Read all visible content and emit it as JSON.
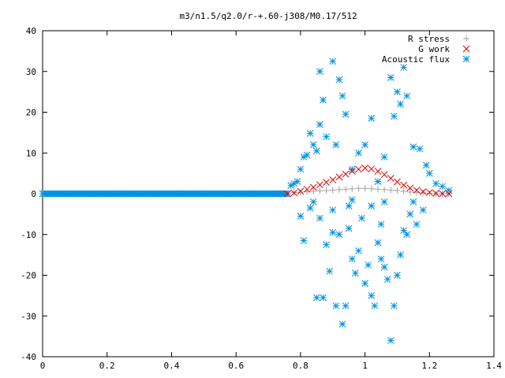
{
  "chart_data": {
    "type": "scatter",
    "title": "m3/n1.5/q2.0/r-+.60-j308/M0.17/512",
    "xlabel": "",
    "ylabel": "",
    "xlim": [
      0,
      1.4
    ],
    "ylim": [
      -40,
      40
    ],
    "x_ticks": [
      "0",
      "0.2",
      "0.4",
      "0.6",
      "0.8",
      "1",
      "1.2",
      "1.4"
    ],
    "y_ticks": [
      "40",
      "30",
      "20",
      "10",
      "0",
      "-10",
      "-20",
      "-30",
      "-40"
    ],
    "grid": false,
    "legend_position": "top-right",
    "series": [
      {
        "name": "R stress",
        "color": "#a0a0a0",
        "marker": "plus",
        "points": [
          [
            0.78,
            0.3
          ],
          [
            0.8,
            0.4
          ],
          [
            0.82,
            0.5
          ],
          [
            0.84,
            0.6
          ],
          [
            0.86,
            0.7
          ],
          [
            0.88,
            0.8
          ],
          [
            0.9,
            0.9
          ],
          [
            0.92,
            1.0
          ],
          [
            0.94,
            1.1
          ],
          [
            0.96,
            1.2
          ],
          [
            0.98,
            1.3
          ],
          [
            1.0,
            1.3
          ],
          [
            1.02,
            1.2
          ],
          [
            1.04,
            1.1
          ],
          [
            1.06,
            1.0
          ],
          [
            1.08,
            0.9
          ],
          [
            1.1,
            0.8
          ],
          [
            1.12,
            0.6
          ],
          [
            1.14,
            0.4
          ],
          [
            1.16,
            0.3
          ],
          [
            1.18,
            0.2
          ],
          [
            1.2,
            0.1
          ],
          [
            1.22,
            0.0
          ],
          [
            1.24,
            0.0
          ],
          [
            1.26,
            0.0
          ]
        ]
      },
      {
        "name": "G work",
        "color": "#e00000",
        "marker": "cross",
        "points": [
          [
            0.76,
            0.0
          ],
          [
            0.78,
            0.2
          ],
          [
            0.8,
            0.6
          ],
          [
            0.82,
            1.1
          ],
          [
            0.84,
            1.6
          ],
          [
            0.86,
            2.2
          ],
          [
            0.88,
            2.8
          ],
          [
            0.9,
            3.4
          ],
          [
            0.92,
            4.1
          ],
          [
            0.94,
            4.8
          ],
          [
            0.96,
            5.5
          ],
          [
            0.98,
            6.0
          ],
          [
            1.0,
            6.3
          ],
          [
            1.02,
            6.1
          ],
          [
            1.04,
            5.5
          ],
          [
            1.06,
            4.7
          ],
          [
            1.08,
            3.8
          ],
          [
            1.1,
            2.9
          ],
          [
            1.12,
            2.1
          ],
          [
            1.14,
            1.4
          ],
          [
            1.16,
            0.9
          ],
          [
            1.18,
            0.5
          ],
          [
            1.2,
            0.3
          ],
          [
            1.22,
            0.1
          ],
          [
            1.24,
            0.0
          ],
          [
            1.26,
            0.0
          ]
        ]
      },
      {
        "name": "Acoustic flux",
        "color": "#0090e0",
        "marker": "star",
        "baseline_x_range": [
          0,
          0.76
        ],
        "baseline_y": 0,
        "points": [
          [
            0.77,
            2.0
          ],
          [
            0.78,
            2.5
          ],
          [
            0.79,
            3.0
          ],
          [
            0.8,
            6.0
          ],
          [
            0.81,
            9.0
          ],
          [
            0.82,
            9.5
          ],
          [
            0.83,
            14.8
          ],
          [
            0.84,
            12.0
          ],
          [
            0.85,
            10.5
          ],
          [
            0.86,
            17.0
          ],
          [
            0.86,
            30.0
          ],
          [
            0.87,
            23.0
          ],
          [
            0.88,
            14.0
          ],
          [
            0.9,
            32.5
          ],
          [
            0.91,
            12.0
          ],
          [
            0.92,
            28.0
          ],
          [
            0.93,
            24.0
          ],
          [
            0.94,
            19.5
          ],
          [
            0.96,
            6.0
          ],
          [
            0.98,
            10.0
          ],
          [
            1.0,
            12.0
          ],
          [
            1.02,
            18.5
          ],
          [
            1.04,
            3.0
          ],
          [
            1.06,
            9.0
          ],
          [
            1.08,
            28.5
          ],
          [
            1.09,
            19.0
          ],
          [
            1.1,
            25.0
          ],
          [
            1.11,
            22.0
          ],
          [
            1.12,
            31.0
          ],
          [
            1.13,
            24.0
          ],
          [
            1.15,
            11.5
          ],
          [
            1.17,
            11.0
          ],
          [
            1.19,
            7.0
          ],
          [
            1.2,
            5.0
          ],
          [
            1.22,
            2.5
          ],
          [
            1.24,
            1.8
          ],
          [
            1.26,
            0.8
          ],
          [
            0.8,
            -5.5
          ],
          [
            0.81,
            -11.5
          ],
          [
            0.83,
            -3.5
          ],
          [
            0.85,
            -25.5
          ],
          [
            0.86,
            -6.0
          ],
          [
            0.87,
            -25.5
          ],
          [
            0.88,
            -12.5
          ],
          [
            0.89,
            -19.0
          ],
          [
            0.9,
            -9.5
          ],
          [
            0.91,
            -27.5
          ],
          [
            0.92,
            -10.0
          ],
          [
            0.93,
            -32.0
          ],
          [
            0.94,
            -27.5
          ],
          [
            0.95,
            -8.5
          ],
          [
            0.96,
            -16.0
          ],
          [
            0.97,
            -19.5
          ],
          [
            0.98,
            -14.0
          ],
          [
            1.0,
            -22.0
          ],
          [
            1.01,
            -17.5
          ],
          [
            1.02,
            -25.0
          ],
          [
            1.03,
            -27.5
          ],
          [
            1.04,
            -12.0
          ],
          [
            1.05,
            -16.0
          ],
          [
            1.06,
            -18.0
          ],
          [
            1.07,
            -21.0
          ],
          [
            1.08,
            -36.0
          ],
          [
            1.09,
            -27.5
          ],
          [
            1.1,
            -20.0
          ],
          [
            1.11,
            -15.0
          ],
          [
            1.12,
            -9.0
          ],
          [
            1.13,
            -10.0
          ],
          [
            1.14,
            -5.0
          ],
          [
            1.16,
            -7.5
          ],
          [
            1.18,
            -4.0
          ],
          [
            0.84,
            -2.0
          ],
          [
            0.9,
            -4.0
          ],
          [
            0.96,
            -1.5
          ],
          [
            1.02,
            -3.0
          ],
          [
            1.06,
            -2.0
          ],
          [
            1.15,
            -2.0
          ],
          [
            0.99,
            -6.0
          ],
          [
            1.05,
            -7.5
          ],
          [
            0.95,
            -3.0
          ]
        ]
      }
    ]
  }
}
